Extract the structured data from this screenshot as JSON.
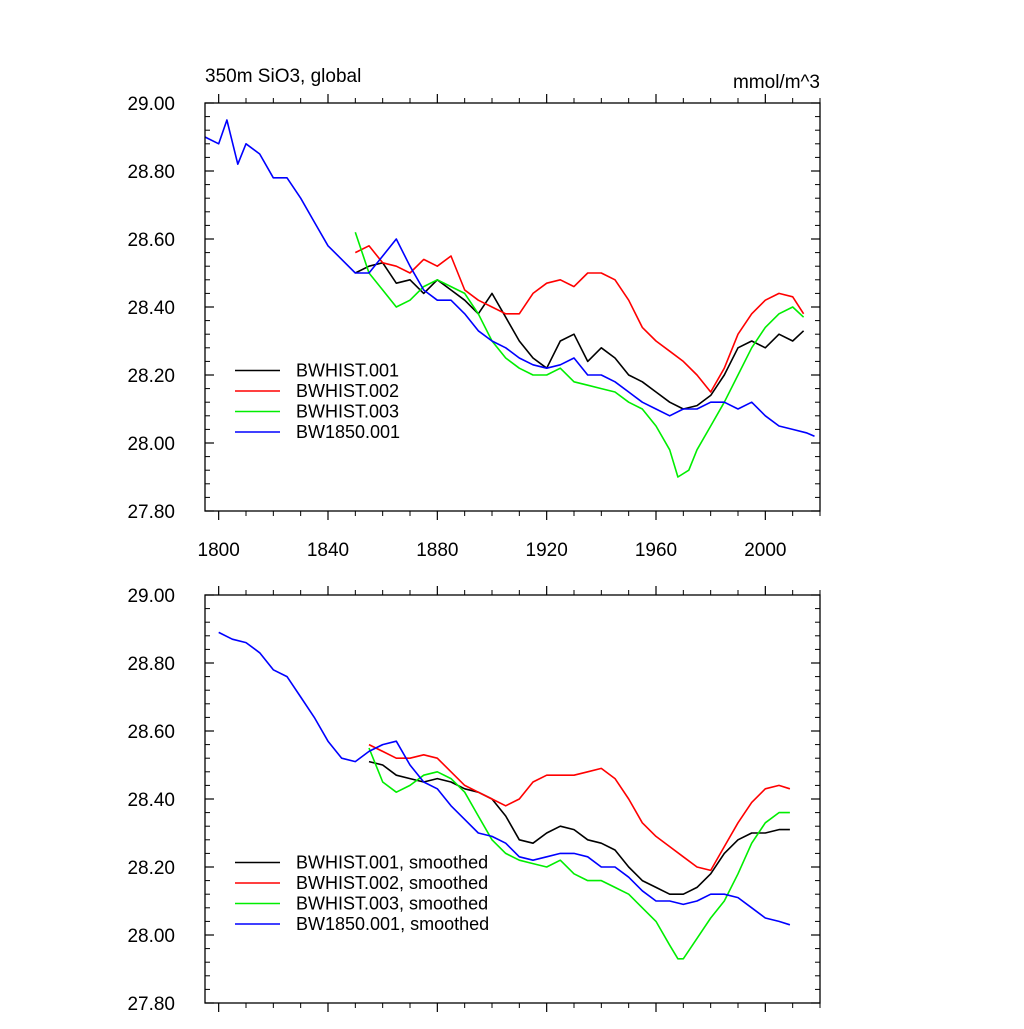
{
  "chart_data": [
    {
      "type": "line",
      "title": "350m SiO3, global",
      "units": "mmol/m^3",
      "xlim": [
        1795,
        2020
      ],
      "ylim": [
        27.8,
        29.0
      ],
      "x_ticks": [
        1800,
        1840,
        1880,
        1920,
        1960,
        2000
      ],
      "x_tick_labels": [
        "1800",
        "1840",
        "1880",
        "1920",
        "1960",
        "2000"
      ],
      "y_ticks": [
        27.8,
        28.0,
        28.2,
        28.4,
        28.6,
        28.8,
        29.0
      ],
      "y_tick_labels": [
        "27.80",
        "28.00",
        "28.20",
        "28.40",
        "28.60",
        "28.80",
        "29.00"
      ],
      "legend_position": "bottom-left",
      "series": [
        {
          "name": "BWHIST.001",
          "color": "#000000",
          "x": [
            1850,
            1855,
            1860,
            1865,
            1870,
            1875,
            1880,
            1885,
            1890,
            1895,
            1900,
            1905,
            1910,
            1915,
            1920,
            1925,
            1930,
            1935,
            1940,
            1945,
            1950,
            1955,
            1960,
            1965,
            1970,
            1975,
            1980,
            1985,
            1990,
            1995,
            2000,
            2005,
            2010,
            2014
          ],
          "y": [
            28.5,
            28.52,
            28.53,
            28.47,
            28.48,
            28.44,
            28.48,
            28.45,
            28.42,
            28.38,
            28.44,
            28.37,
            28.3,
            28.25,
            28.22,
            28.3,
            28.32,
            28.24,
            28.28,
            28.25,
            28.2,
            28.18,
            28.15,
            28.12,
            28.1,
            28.11,
            28.14,
            28.2,
            28.28,
            28.3,
            28.28,
            28.32,
            28.3,
            28.33
          ]
        },
        {
          "name": "BWHIST.002",
          "color": "#ff0000",
          "x": [
            1850,
            1855,
            1860,
            1865,
            1870,
            1875,
            1880,
            1885,
            1890,
            1895,
            1900,
            1905,
            1910,
            1915,
            1920,
            1925,
            1930,
            1935,
            1940,
            1945,
            1950,
            1955,
            1960,
            1965,
            1970,
            1975,
            1980,
            1985,
            1990,
            1995,
            2000,
            2005,
            2010,
            2014
          ],
          "y": [
            28.56,
            28.58,
            28.53,
            28.52,
            28.5,
            28.54,
            28.52,
            28.55,
            28.45,
            28.42,
            28.4,
            28.38,
            28.38,
            28.44,
            28.47,
            28.48,
            28.46,
            28.5,
            28.5,
            28.48,
            28.42,
            28.34,
            28.3,
            28.27,
            28.24,
            28.2,
            28.15,
            28.22,
            28.32,
            28.38,
            28.42,
            28.44,
            28.43,
            28.38
          ]
        },
        {
          "name": "BWHIST.003",
          "color": "#00ee00",
          "x": [
            1850,
            1855,
            1860,
            1865,
            1870,
            1875,
            1880,
            1885,
            1890,
            1895,
            1900,
            1905,
            1910,
            1915,
            1920,
            1925,
            1930,
            1935,
            1940,
            1945,
            1950,
            1955,
            1960,
            1965,
            1968,
            1972,
            1975,
            1980,
            1985,
            1990,
            1995,
            2000,
            2005,
            2010,
            2014
          ],
          "y": [
            28.62,
            28.5,
            28.45,
            28.4,
            28.42,
            28.46,
            28.48,
            28.46,
            28.44,
            28.38,
            28.3,
            28.25,
            28.22,
            28.2,
            28.2,
            28.22,
            28.18,
            28.17,
            28.16,
            28.15,
            28.12,
            28.1,
            28.05,
            27.98,
            27.9,
            27.92,
            27.98,
            28.05,
            28.12,
            28.2,
            28.28,
            28.34,
            28.38,
            28.4,
            28.37
          ]
        },
        {
          "name": "BW1850.001",
          "color": "#0000ff",
          "x": [
            1795,
            1800,
            1803,
            1807,
            1810,
            1815,
            1820,
            1825,
            1830,
            1835,
            1840,
            1845,
            1850,
            1855,
            1860,
            1865,
            1870,
            1875,
            1880,
            1885,
            1890,
            1895,
            1900,
            1905,
            1910,
            1915,
            1920,
            1925,
            1930,
            1935,
            1940,
            1945,
            1950,
            1955,
            1960,
            1965,
            1970,
            1975,
            1980,
            1985,
            1990,
            1995,
            2000,
            2005,
            2010,
            2015,
            2018
          ],
          "y": [
            28.9,
            28.88,
            28.95,
            28.82,
            28.88,
            28.85,
            28.78,
            28.78,
            28.72,
            28.65,
            28.58,
            28.54,
            28.5,
            28.5,
            28.55,
            28.6,
            28.52,
            28.45,
            28.42,
            28.42,
            28.38,
            28.33,
            28.3,
            28.28,
            28.25,
            28.23,
            28.22,
            28.23,
            28.25,
            28.2,
            28.2,
            28.18,
            28.15,
            28.12,
            28.1,
            28.08,
            28.1,
            28.1,
            28.12,
            28.12,
            28.1,
            28.12,
            28.08,
            28.05,
            28.04,
            28.03,
            28.02
          ]
        }
      ]
    },
    {
      "type": "line",
      "title": "",
      "xlim": [
        1795,
        2020
      ],
      "ylim": [
        27.8,
        29.0
      ],
      "x_ticks": [
        1800,
        1840,
        1880,
        1920,
        1960,
        2000
      ],
      "y_ticks": [
        27.8,
        28.0,
        28.2,
        28.4,
        28.6,
        28.8,
        29.0
      ],
      "y_tick_labels": [
        "27.80",
        "28.00",
        "28.20",
        "28.40",
        "28.60",
        "28.80",
        "29.00"
      ],
      "legend_position": "bottom-left",
      "series": [
        {
          "name": "BWHIST.001, smoothed",
          "color": "#000000",
          "x": [
            1855,
            1860,
            1865,
            1870,
            1875,
            1880,
            1885,
            1890,
            1895,
            1900,
            1905,
            1910,
            1915,
            1920,
            1925,
            1930,
            1935,
            1940,
            1945,
            1950,
            1955,
            1960,
            1965,
            1970,
            1975,
            1980,
            1985,
            1990,
            1995,
            2000,
            2005,
            2009
          ],
          "y": [
            28.51,
            28.5,
            28.47,
            28.46,
            28.45,
            28.46,
            28.45,
            28.43,
            28.42,
            28.4,
            28.35,
            28.28,
            28.27,
            28.3,
            28.32,
            28.31,
            28.28,
            28.27,
            28.25,
            28.2,
            28.16,
            28.14,
            28.12,
            28.12,
            28.14,
            28.18,
            28.24,
            28.28,
            28.3,
            28.3,
            28.31,
            28.31
          ]
        },
        {
          "name": "BWHIST.002, smoothed",
          "color": "#ff0000",
          "x": [
            1855,
            1860,
            1865,
            1870,
            1875,
            1880,
            1885,
            1890,
            1895,
            1900,
            1905,
            1910,
            1915,
            1920,
            1925,
            1930,
            1935,
            1940,
            1945,
            1950,
            1955,
            1960,
            1965,
            1970,
            1975,
            1980,
            1985,
            1990,
            1995,
            2000,
            2005,
            2009
          ],
          "y": [
            28.56,
            28.54,
            28.52,
            28.52,
            28.53,
            28.52,
            28.48,
            28.44,
            28.42,
            28.4,
            28.38,
            28.4,
            28.45,
            28.47,
            28.47,
            28.47,
            28.48,
            28.49,
            28.46,
            28.4,
            28.33,
            28.29,
            28.26,
            28.23,
            28.2,
            28.19,
            28.26,
            28.33,
            28.39,
            28.43,
            28.44,
            28.43
          ]
        },
        {
          "name": "BWHIST.003, smoothed",
          "color": "#00ee00",
          "x": [
            1855,
            1860,
            1865,
            1870,
            1875,
            1880,
            1885,
            1890,
            1895,
            1900,
            1905,
            1910,
            1915,
            1920,
            1925,
            1930,
            1935,
            1940,
            1945,
            1950,
            1955,
            1960,
            1965,
            1968,
            1970,
            1975,
            1980,
            1985,
            1990,
            1995,
            2000,
            2005,
            2009
          ],
          "y": [
            28.55,
            28.45,
            28.42,
            28.44,
            28.47,
            28.48,
            28.46,
            28.42,
            28.35,
            28.28,
            28.24,
            28.22,
            28.21,
            28.2,
            28.22,
            28.18,
            28.16,
            28.16,
            28.14,
            28.12,
            28.08,
            28.04,
            27.97,
            27.93,
            27.93,
            27.99,
            28.05,
            28.1,
            28.18,
            28.27,
            28.33,
            28.36,
            28.36
          ]
        },
        {
          "name": "BW1850.001, smoothed",
          "color": "#0000ff",
          "x": [
            1800,
            1805,
            1810,
            1815,
            1820,
            1825,
            1830,
            1835,
            1840,
            1845,
            1850,
            1855,
            1860,
            1865,
            1870,
            1875,
            1880,
            1885,
            1890,
            1895,
            1900,
            1905,
            1910,
            1915,
            1920,
            1925,
            1930,
            1935,
            1940,
            1945,
            1950,
            1955,
            1960,
            1965,
            1970,
            1975,
            1980,
            1985,
            1990,
            1995,
            2000,
            2005,
            2009
          ],
          "y": [
            28.89,
            28.87,
            28.86,
            28.83,
            28.78,
            28.76,
            28.7,
            28.64,
            28.57,
            28.52,
            28.51,
            28.54,
            28.56,
            28.57,
            28.5,
            28.45,
            28.43,
            28.38,
            28.34,
            28.3,
            28.29,
            28.27,
            28.23,
            28.22,
            28.23,
            28.24,
            28.24,
            28.23,
            28.2,
            28.2,
            28.17,
            28.13,
            28.1,
            28.1,
            28.09,
            28.1,
            28.12,
            28.12,
            28.11,
            28.08,
            28.05,
            28.04,
            28.03
          ]
        }
      ]
    }
  ]
}
